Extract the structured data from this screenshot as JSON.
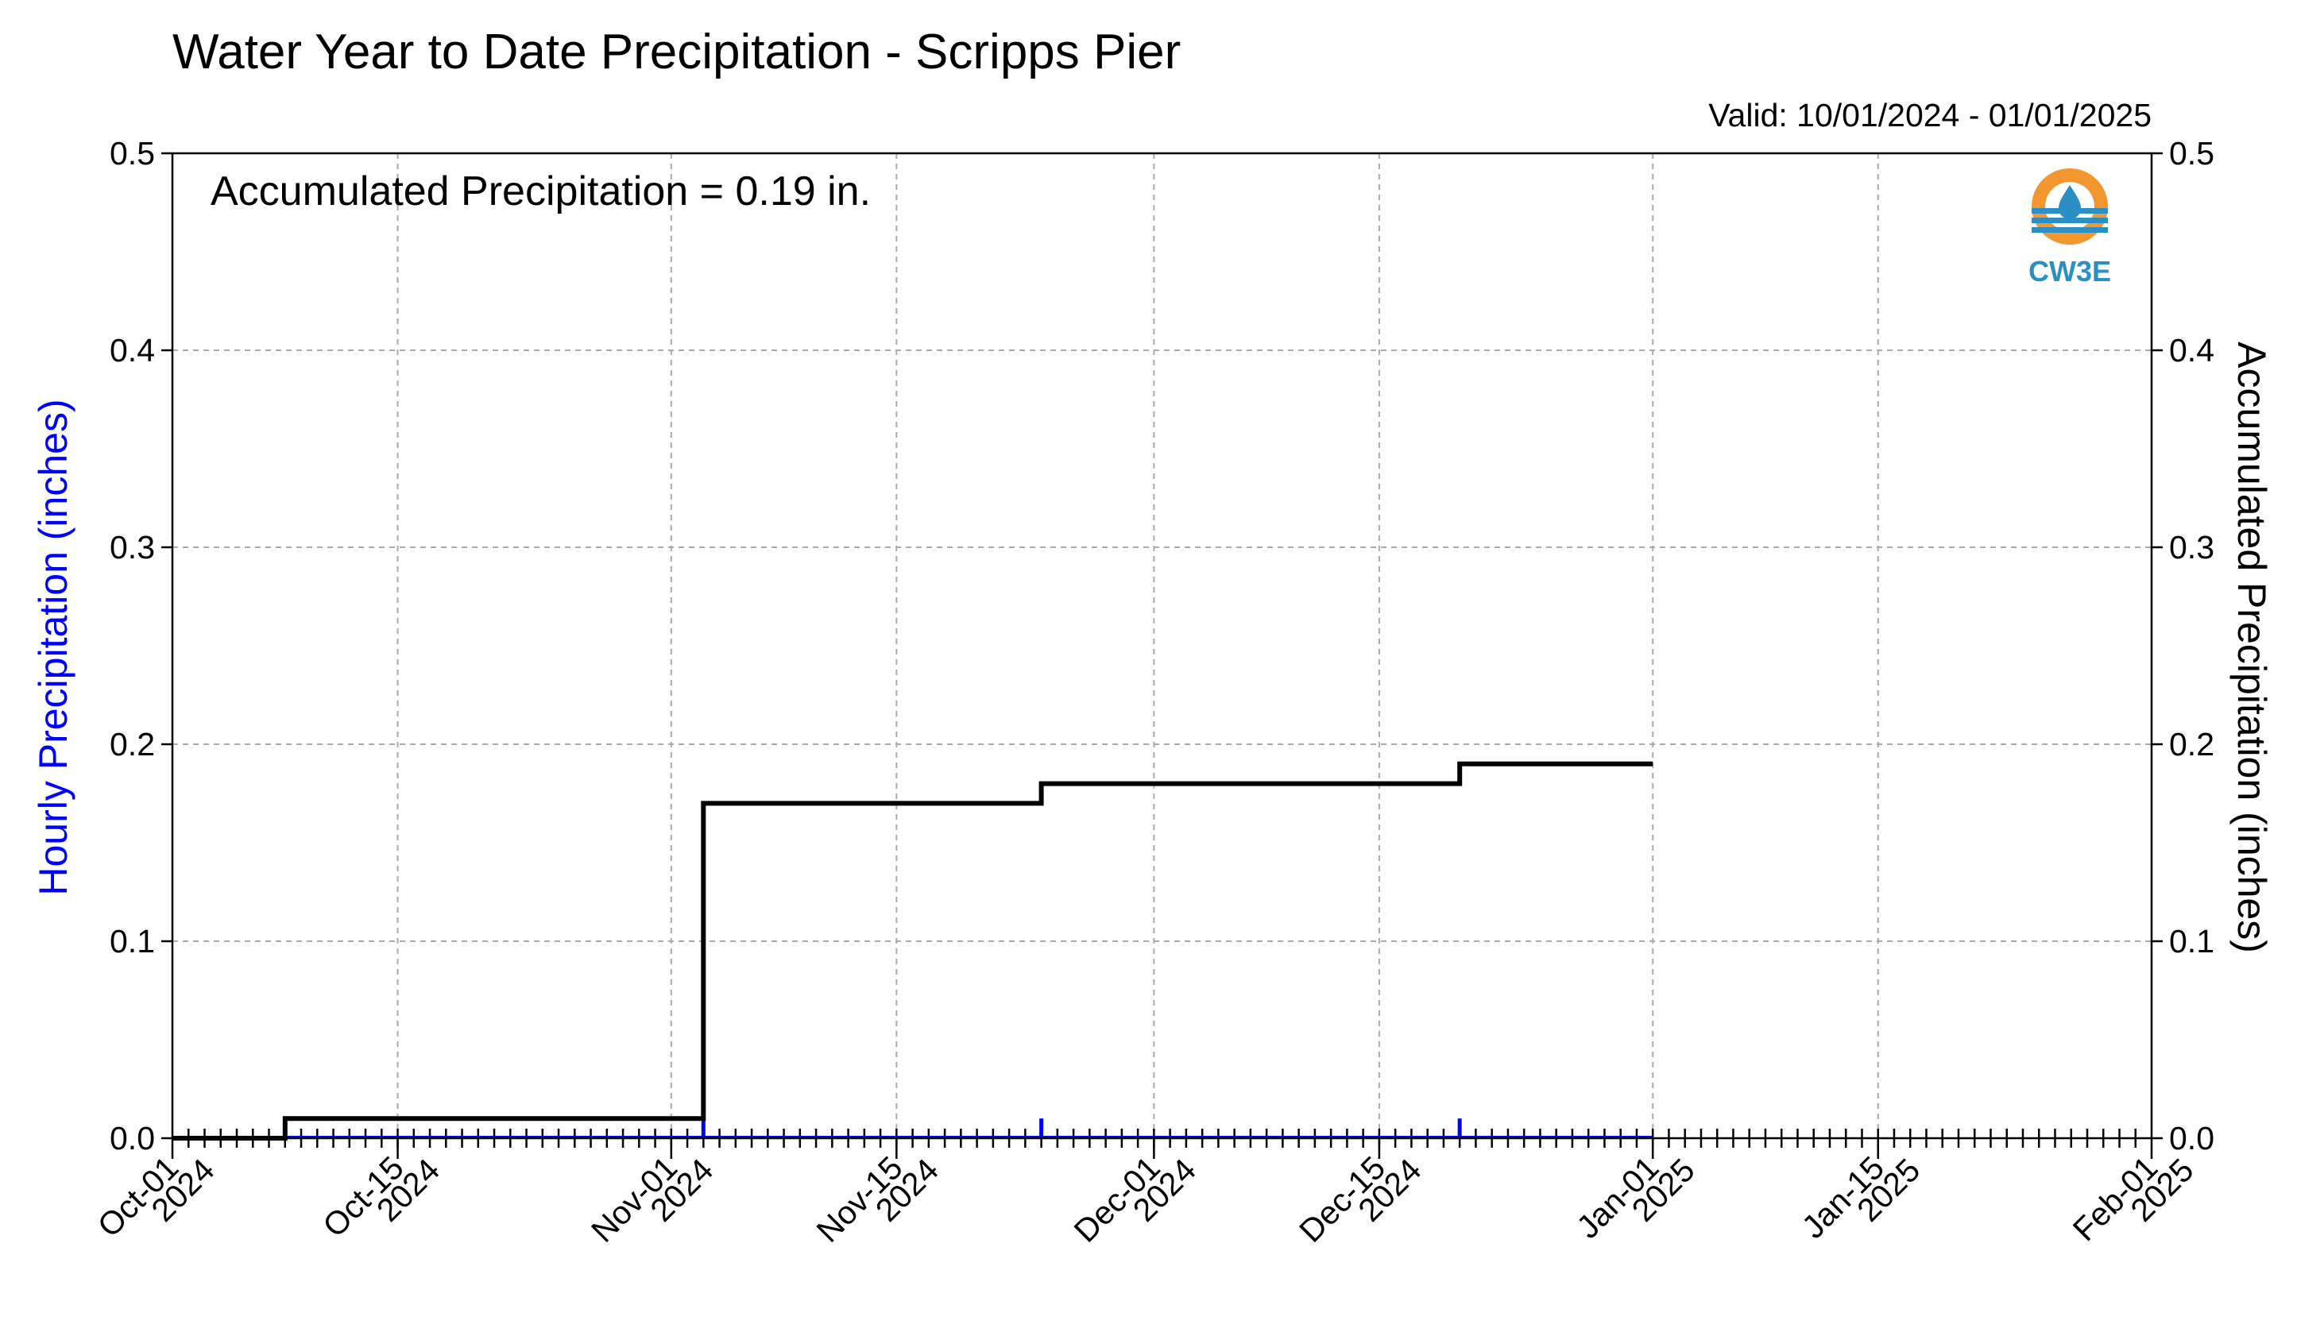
{
  "chart_data": {
    "type": "line",
    "title": "Water Year to Date Precipitation - Scripps Pier",
    "valid_label": "Valid: 10/01/2024 - 01/01/2025",
    "annotation": "Accumulated Precipitation = 0.19 in.",
    "logo_text": "CW3E",
    "ylabel_left": "Hourly Precipitation (inches)",
    "ylabel_right": "Accumulated Precipitation (inches)",
    "ylim": [
      0,
      0.5
    ],
    "xlim": [
      "2024-10-01",
      "2025-02-01"
    ],
    "y_ticks": [
      "0.0",
      "0.1",
      "0.2",
      "0.3",
      "0.4",
      "0.5"
    ],
    "x_ticks": [
      {
        "date": "2024-10-01",
        "label": [
          "Oct-01",
          "2024"
        ]
      },
      {
        "date": "2024-10-15",
        "label": [
          "Oct-15",
          "2024"
        ]
      },
      {
        "date": "2024-11-01",
        "label": [
          "Nov-01",
          "2024"
        ]
      },
      {
        "date": "2024-11-15",
        "label": [
          "Nov-15",
          "2024"
        ]
      },
      {
        "date": "2024-12-01",
        "label": [
          "Dec-01",
          "2024"
        ]
      },
      {
        "date": "2024-12-15",
        "label": [
          "Dec-15",
          "2024"
        ]
      },
      {
        "date": "2025-01-01",
        "label": [
          "Jan-01",
          "2025"
        ]
      },
      {
        "date": "2025-01-15",
        "label": [
          "Jan-15",
          "2025"
        ]
      },
      {
        "date": "2025-02-01",
        "label": [
          "Feb-01",
          "2025"
        ]
      }
    ],
    "grid": true,
    "series": [
      {
        "name": "Accumulated Precipitation",
        "color": "#000000",
        "style": "step",
        "points": [
          {
            "x": "2024-10-01",
            "y": 0.0
          },
          {
            "x": "2024-10-08",
            "y": 0.0
          },
          {
            "x": "2024-10-08",
            "y": 0.01
          },
          {
            "x": "2024-11-03",
            "y": 0.01
          },
          {
            "x": "2024-11-03",
            "y": 0.17
          },
          {
            "x": "2024-11-24",
            "y": 0.17
          },
          {
            "x": "2024-11-24",
            "y": 0.18
          },
          {
            "x": "2024-12-20",
            "y": 0.18
          },
          {
            "x": "2024-12-20",
            "y": 0.19
          },
          {
            "x": "2025-01-01",
            "y": 0.19
          }
        ]
      },
      {
        "name": "Hourly Precipitation",
        "color": "#0000ff",
        "style": "bar",
        "points": [
          {
            "x": "2024-10-08",
            "y": 0.01
          },
          {
            "x": "2024-11-03",
            "y": 0.01
          },
          {
            "x": "2024-11-24",
            "y": 0.01
          },
          {
            "x": "2024-12-20",
            "y": 0.01
          }
        ]
      }
    ]
  }
}
